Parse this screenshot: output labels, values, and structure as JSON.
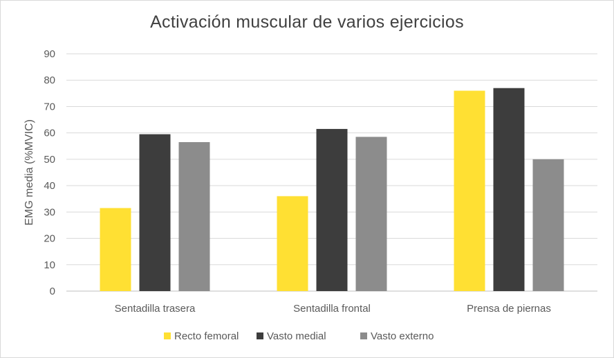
{
  "chart_data": {
    "type": "bar",
    "title": "Activación muscular de varios ejercicios",
    "xlabel": "",
    "ylabel": "EMG media (%MVIC)",
    "ylim": [
      0,
      90
    ],
    "yticks": [
      0,
      10,
      20,
      30,
      40,
      50,
      60,
      70,
      80,
      90
    ],
    "grid": true,
    "legend_position": "bottom",
    "categories": [
      "Sentadilla trasera",
      "Sentadilla frontal",
      "Prensa de piernas"
    ],
    "series": [
      {
        "name": "Recto femoral",
        "color": "#ffe033",
        "values": [
          31.5,
          36,
          76
        ]
      },
      {
        "name": "Vasto medial",
        "color": "#3d3d3d",
        "values": [
          59.5,
          61.5,
          77
        ]
      },
      {
        "name": "Vasto externo",
        "color": "#8c8c8c",
        "values": [
          56.5,
          58.5,
          50
        ]
      }
    ]
  }
}
